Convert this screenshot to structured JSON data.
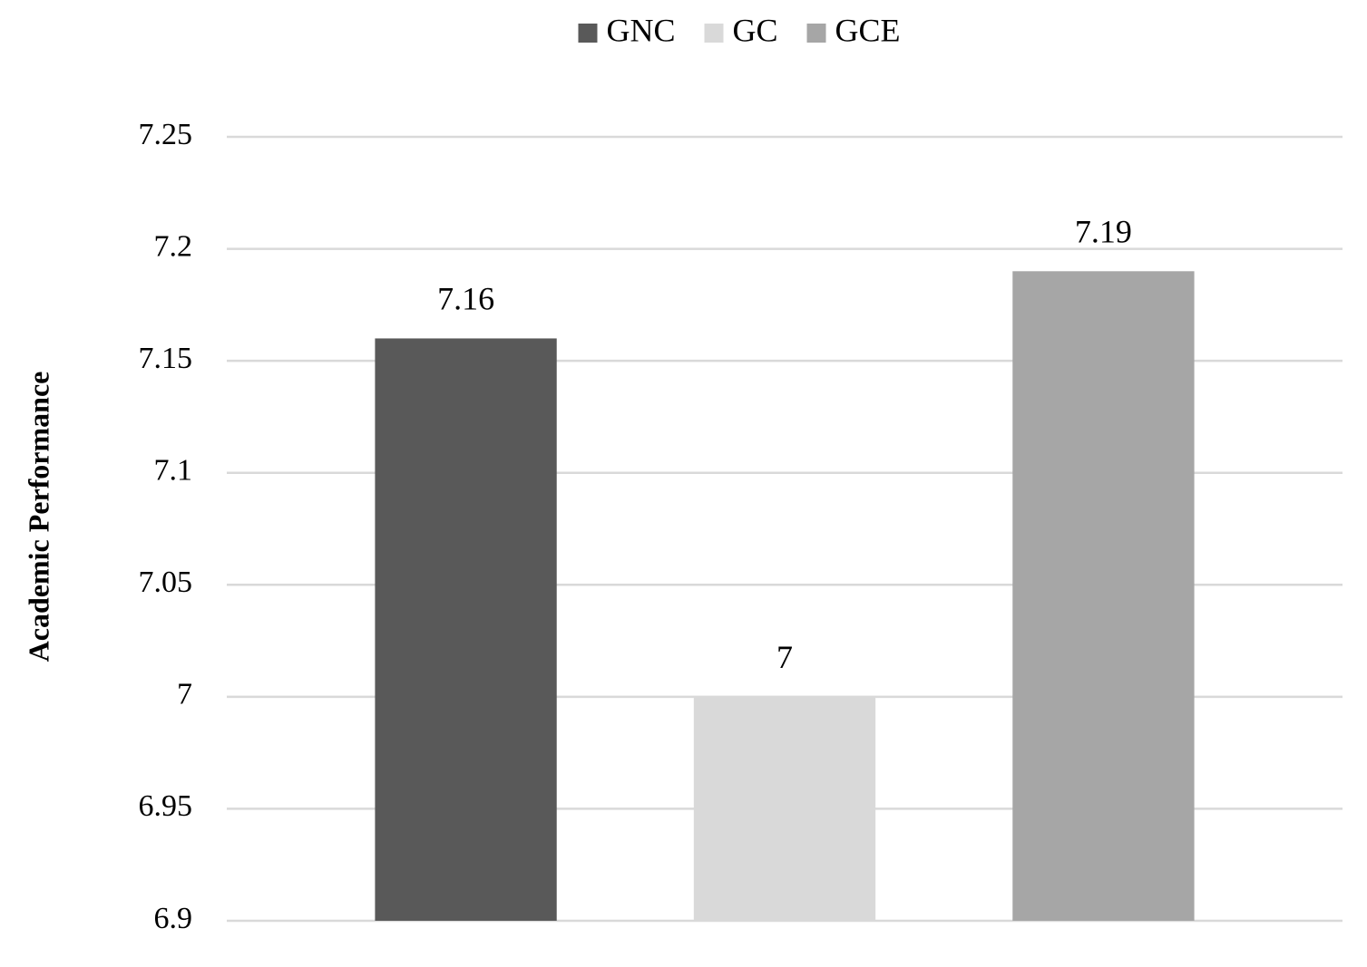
{
  "chart_data": {
    "type": "bar",
    "y_label": "Academic Performance",
    "categories": [
      null
    ],
    "series": [
      {
        "name": "GNC",
        "color": "#595959",
        "values": [
          7.16
        ]
      },
      {
        "name": "GC",
        "color": "#d9d9d9",
        "values": [
          7
        ]
      },
      {
        "name": "GCE",
        "color": "#a6a6a6",
        "values": [
          7.19
        ]
      }
    ],
    "ylim": [
      6.9,
      7.25
    ],
    "yticks": [
      6.9,
      6.95,
      7,
      7.05,
      7.1,
      7.15,
      7.2,
      7.25
    ],
    "grid": true,
    "legend": "top"
  }
}
